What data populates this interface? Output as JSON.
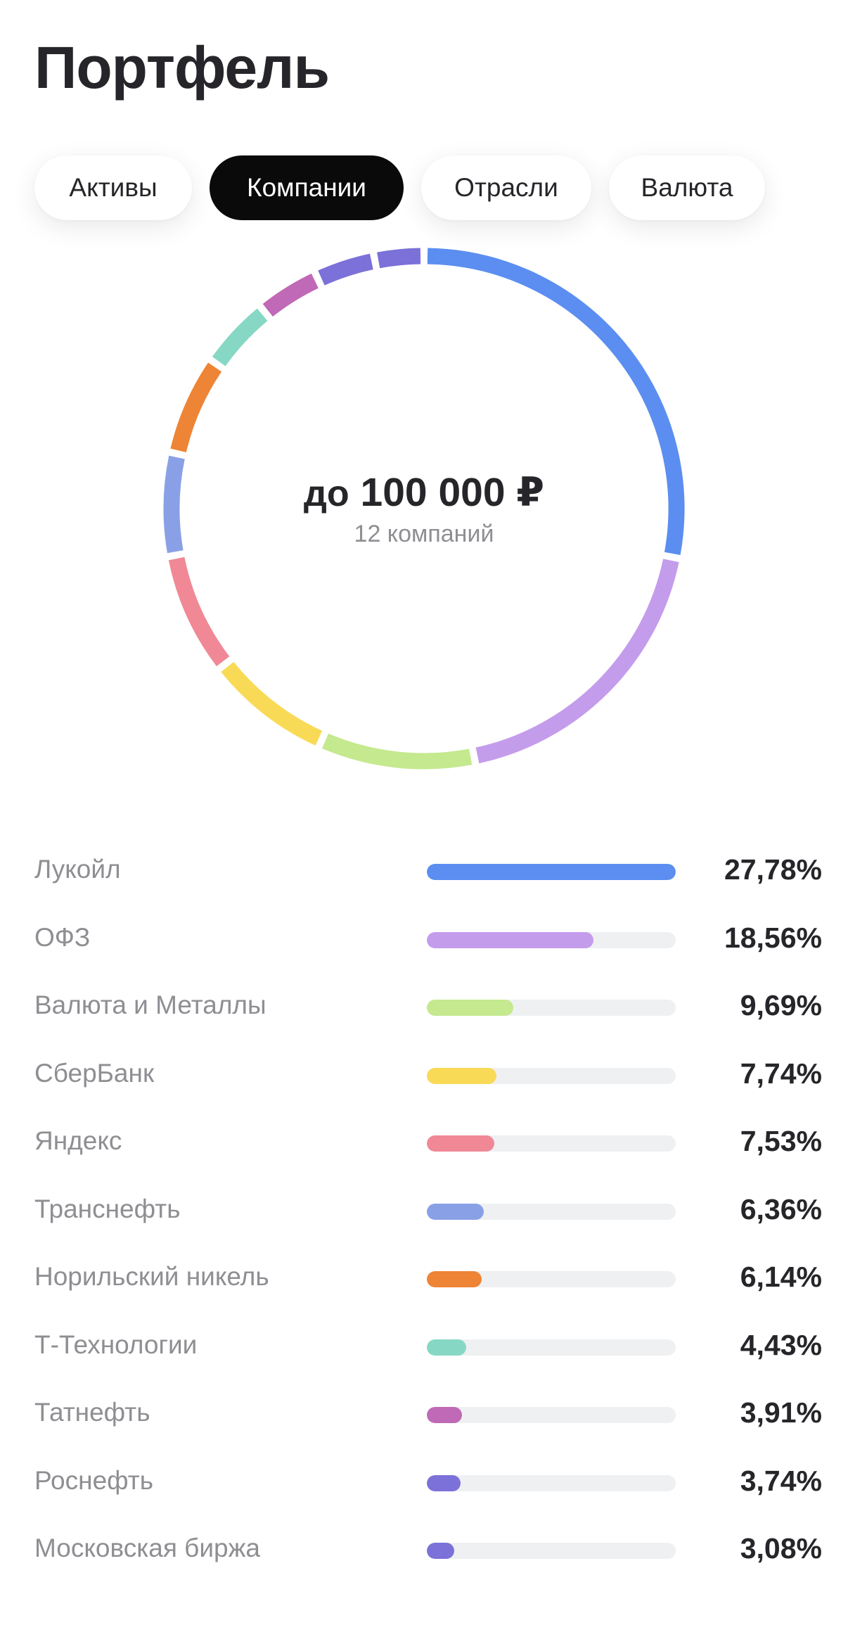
{
  "header": {
    "title": "Портфель"
  },
  "tabs": [
    {
      "label": "Активы",
      "active": false
    },
    {
      "label": "Компании",
      "active": true
    },
    {
      "label": "Отрасли",
      "active": false
    },
    {
      "label": "Валюта",
      "active": false
    }
  ],
  "summary": {
    "amount_prefix": "до",
    "amount": "100 000 ₽",
    "count": "12 компаний"
  },
  "companies": [
    {
      "name": "Лукойл",
      "value": "27,78%",
      "percent": 27.78,
      "color": "#5b8ef0"
    },
    {
      "name": "ОФЗ",
      "value": "18,56%",
      "percent": 18.56,
      "color": "#c49cec"
    },
    {
      "name": "Валюта и Металлы",
      "value": "9,69%",
      "percent": 9.69,
      "color": "#c4e98e"
    },
    {
      "name": "СберБанк",
      "value": "7,74%",
      "percent": 7.74,
      "color": "#f9da56"
    },
    {
      "name": "Яндекс",
      "value": "7,53%",
      "percent": 7.53,
      "color": "#f08896"
    },
    {
      "name": "Транснефть",
      "value": "6,36%",
      "percent": 6.36,
      "color": "#8aa0e6"
    },
    {
      "name": "Норильский никель",
      "value": "6,14%",
      "percent": 6.14,
      "color": "#ee8435"
    },
    {
      "name": "Т-Технологии",
      "value": "4,43%",
      "percent": 4.43,
      "color": "#86d8c4"
    },
    {
      "name": "Татнефть",
      "value": "3,91%",
      "percent": 3.91,
      "color": "#c069b6"
    },
    {
      "name": "Роснефть",
      "value": "3,74%",
      "percent": 3.74,
      "color": "#7b71d8"
    },
    {
      "name": "Московская биржа",
      "value": "3,08%",
      "percent": 3.08,
      "color": "#7b71d8"
    }
  ]
}
